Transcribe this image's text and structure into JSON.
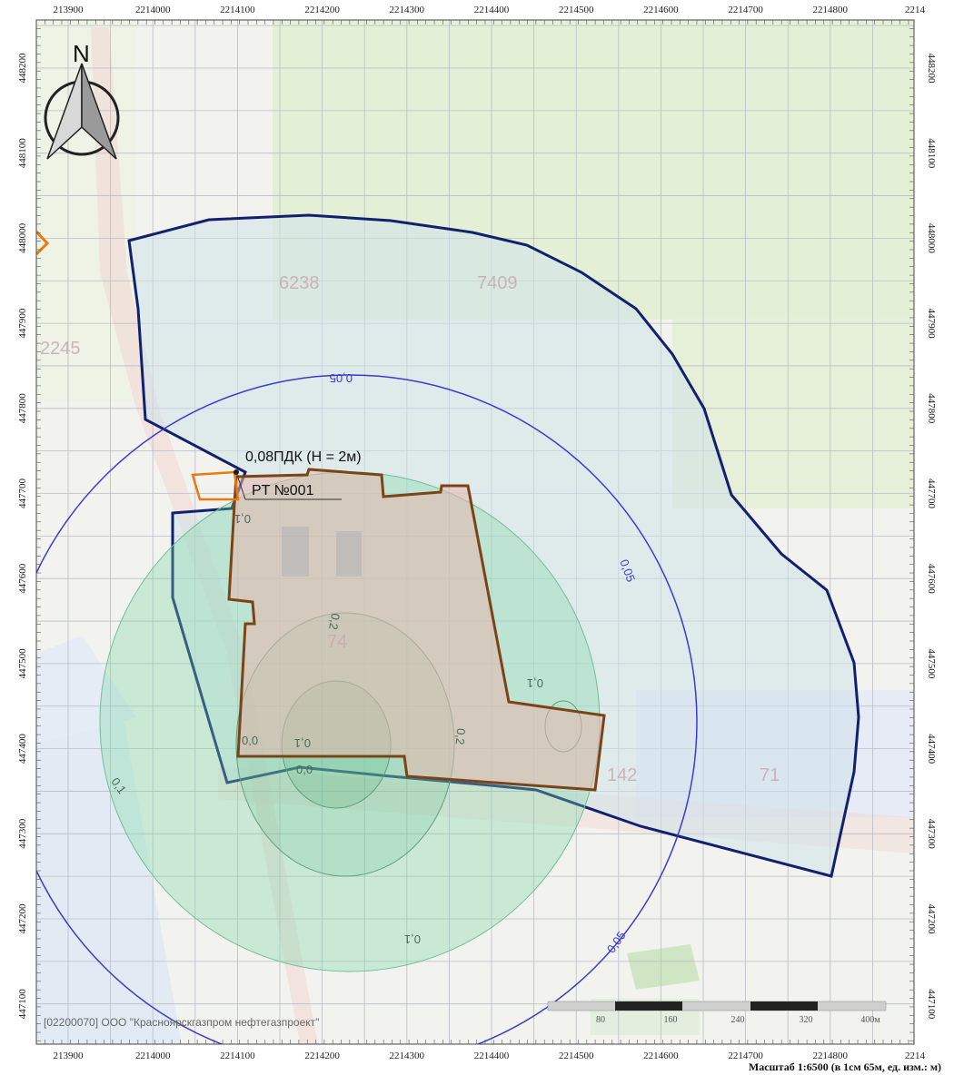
{
  "map": {
    "x_ticks": [
      "213900",
      "2214000",
      "2214100",
      "2214200",
      "2214300",
      "2214400",
      "2214500",
      "2214600",
      "2214700",
      "2214800",
      "2214"
    ],
    "y_ticks": [
      "448200",
      "448100",
      "448000",
      "447900",
      "447800",
      "447700",
      "447600",
      "447500",
      "447400",
      "447300",
      "447200",
      "447100"
    ],
    "north_label": "N",
    "point_label": "0,08ПДК (H = 2м)",
    "point_name": "PT №001",
    "iso_labels": [
      {
        "text": "0,05",
        "color": "#3b3bd0"
      },
      {
        "text": "0,05",
        "color": "#3b3bd0"
      },
      {
        "text": "0,05",
        "color": "#3b3bd0"
      },
      {
        "text": "0,2",
        "color": "#4a6a5a"
      },
      {
        "text": "0,2",
        "color": "#4a6a5a"
      },
      {
        "text": "0,1",
        "color": "#4a6a5a"
      },
      {
        "text": "0,1",
        "color": "#4a6a5a"
      },
      {
        "text": "0,1",
        "color": "#4a6a5a"
      },
      {
        "text": "0,1",
        "color": "#4a6a5a"
      },
      {
        "text": "0,1",
        "color": "#4a6a5a"
      },
      {
        "text": "0,0",
        "color": "#4a6a5a"
      },
      {
        "text": "0,0",
        "color": "#4a6a5a"
      }
    ],
    "map_labels": [
      "6238",
      "7409",
      "2245",
      "74",
      "142",
      "71"
    ],
    "copyright": "[02200070] ООО \"Красноярскгазпром нефтегазпроект\"",
    "scale_bar_labels": [
      "80",
      "160",
      "240",
      "320",
      "400м"
    ],
    "scale_caption": "Масштаб 1:6500 (в 1см 65м, ед. изм.: м)",
    "colors": {
      "zone_outline": "#13206e",
      "iso_005": "#3a3acb",
      "site_outline": "#7a4418",
      "plot_outline": "#e87a10",
      "green_zone": "#7fd6a6",
      "pink_site": "#e7b7ad"
    }
  }
}
